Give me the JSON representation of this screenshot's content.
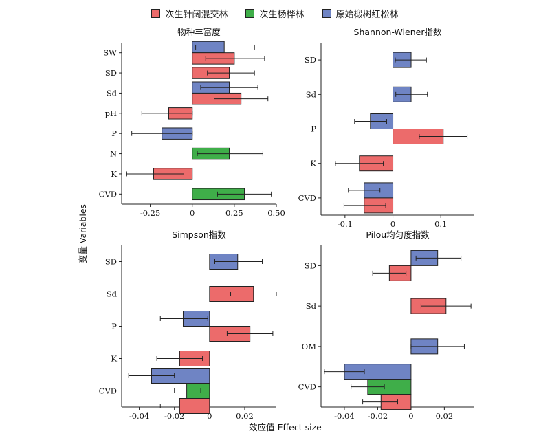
{
  "legend": [
    {
      "label": "次生针阔混交林",
      "color": "#ec6b6b"
    },
    {
      "label": "次生杨桦林",
      "color": "#3fae49"
    },
    {
      "label": "原始椴树红松林",
      "color": "#6f84c4"
    }
  ],
  "colors": {
    "edge": "#222222",
    "errorbar": "#222222"
  },
  "xlabel": "效应值  Effect size",
  "ylabel": "变量  Variables",
  "chart_data": [
    {
      "type": "bar",
      "orientation": "horizontal",
      "title": "物种丰富度",
      "categories": [
        "SW",
        "SD",
        "Sd",
        "pH",
        "P",
        "N",
        "K",
        "CVD"
      ],
      "xlim": [
        -0.42,
        0.5
      ],
      "xticks": [
        -0.25,
        0,
        0.25,
        0.5
      ],
      "xtick_labels": [
        "-0.25",
        "0",
        "0.25",
        "0.50"
      ],
      "bars": [
        {
          "category": "SW",
          "series": 2,
          "value": 0.19,
          "ci": [
            0.02,
            0.37
          ]
        },
        {
          "category": "SW",
          "series": 0,
          "value": 0.25,
          "ci": [
            0.08,
            0.43
          ]
        },
        {
          "category": "SD",
          "series": 0,
          "value": 0.22,
          "ci": [
            0.09,
            0.37
          ]
        },
        {
          "category": "Sd",
          "series": 2,
          "value": 0.22,
          "ci": [
            0.05,
            0.39
          ]
        },
        {
          "category": "Sd",
          "series": 0,
          "value": 0.29,
          "ci": [
            0.13,
            0.45
          ]
        },
        {
          "category": "pH",
          "series": 0,
          "value": -0.14,
          "ci": [
            -0.3,
            0
          ]
        },
        {
          "category": "P",
          "series": 2,
          "value": -0.18,
          "ci": [
            -0.36,
            0
          ]
        },
        {
          "category": "N",
          "series": 1,
          "value": 0.22,
          "ci": [
            0.03,
            0.42
          ]
        },
        {
          "category": "K",
          "series": 0,
          "value": -0.23,
          "ci": [
            -0.39,
            -0.05
          ]
        },
        {
          "category": "CVD",
          "series": 1,
          "value": 0.31,
          "ci": [
            0.15,
            0.47
          ]
        }
      ]
    },
    {
      "type": "bar",
      "orientation": "horizontal",
      "title": "Shannon-Wiener指数",
      "categories": [
        "SD",
        "Sd",
        "P",
        "K",
        "CVD"
      ],
      "xlim": [
        -0.15,
        0.17
      ],
      "xticks": [
        -0.1,
        0,
        0.1
      ],
      "xtick_labels": [
        "-0.1",
        "0",
        "0.1"
      ],
      "bars": [
        {
          "category": "SD",
          "series": 2,
          "value": 0.038,
          "ci": [
            0.005,
            0.07
          ]
        },
        {
          "category": "Sd",
          "series": 2,
          "value": 0.038,
          "ci": [
            0.006,
            0.072
          ]
        },
        {
          "category": "P",
          "series": 2,
          "value": -0.047,
          "ci": [
            -0.08,
            -0.013
          ]
        },
        {
          "category": "P",
          "series": 0,
          "value": 0.105,
          "ci": [
            0.055,
            0.155
          ]
        },
        {
          "category": "K",
          "series": 0,
          "value": -0.07,
          "ci": [
            -0.12,
            -0.02
          ]
        },
        {
          "category": "CVD",
          "series": 2,
          "value": -0.06,
          "ci": [
            -0.093,
            -0.027
          ]
        },
        {
          "category": "CVD",
          "series": 0,
          "value": -0.06,
          "ci": [
            -0.102,
            -0.015
          ]
        }
      ]
    },
    {
      "type": "bar",
      "orientation": "horizontal",
      "title": "Simpson指数",
      "categories": [
        "SD",
        "Sd",
        "P",
        "K",
        "CVD"
      ],
      "xlim": [
        -0.05,
        0.038
      ],
      "xticks": [
        -0.04,
        -0.02,
        0,
        0.02
      ],
      "xtick_labels": [
        "-0.04",
        "-0.02",
        "0",
        "0.02"
      ],
      "bars": [
        {
          "category": "SD",
          "series": 2,
          "value": 0.016,
          "ci": [
            0.003,
            0.03
          ]
        },
        {
          "category": "Sd",
          "series": 0,
          "value": 0.025,
          "ci": [
            0.012,
            0.038
          ]
        },
        {
          "category": "P",
          "series": 2,
          "value": -0.015,
          "ci": [
            -0.028,
            -0.001
          ]
        },
        {
          "category": "P",
          "series": 0,
          "value": 0.023,
          "ci": [
            0.01,
            0.036
          ]
        },
        {
          "category": "K",
          "series": 0,
          "value": -0.017,
          "ci": [
            -0.03,
            -0.004
          ]
        },
        {
          "category": "CVD",
          "series": 2,
          "value": -0.033,
          "ci": [
            -0.046,
            -0.02
          ]
        },
        {
          "category": "CVD",
          "series": 1,
          "value": -0.013,
          "ci": [
            -0.02,
            -0.005
          ]
        },
        {
          "category": "CVD",
          "series": 0,
          "value": -0.017,
          "ci": [
            -0.028,
            -0.006
          ]
        }
      ]
    },
    {
      "type": "bar",
      "orientation": "horizontal",
      "title": "Pilou均匀度指数",
      "categories": [
        "SD",
        "Sd",
        "OM",
        "CVD"
      ],
      "xlim": [
        -0.054,
        0.038
      ],
      "xticks": [
        -0.04,
        -0.02,
        0,
        0.02
      ],
      "xtick_labels": [
        "-0.04",
        "-0.02",
        "0",
        "0.02"
      ],
      "bars": [
        {
          "category": "SD",
          "series": 2,
          "value": 0.016,
          "ci": [
            0.003,
            0.03
          ]
        },
        {
          "category": "SD",
          "series": 0,
          "value": -0.013,
          "ci": [
            -0.023,
            -0.003
          ]
        },
        {
          "category": "Sd",
          "series": 0,
          "value": 0.021,
          "ci": [
            0.006,
            0.036
          ]
        },
        {
          "category": "OM",
          "series": 2,
          "value": 0.016,
          "ci": [
            0,
            0.032
          ]
        },
        {
          "category": "CVD",
          "series": 2,
          "value": -0.04,
          "ci": [
            -0.052,
            -0.028
          ]
        },
        {
          "category": "CVD",
          "series": 1,
          "value": -0.026,
          "ci": [
            -0.036,
            -0.016
          ]
        },
        {
          "category": "CVD",
          "series": 0,
          "value": -0.018,
          "ci": [
            -0.029,
            -0.008
          ]
        }
      ]
    }
  ]
}
